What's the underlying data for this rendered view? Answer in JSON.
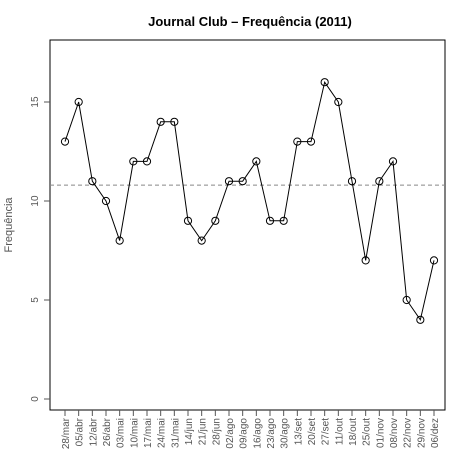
{
  "chart_data": {
    "type": "line",
    "title": "Journal Club – Frequência (2011)",
    "xlabel": "",
    "ylabel": "Frequência",
    "ylim": [
      0,
      17.5
    ],
    "yticks": [
      0,
      5,
      10,
      15
    ],
    "categories": [
      "28/mar",
      "05/abr",
      "12/abr",
      "26/abr",
      "03/mai",
      "10/mai",
      "17/mai",
      "24/mai",
      "31/mai",
      "14/jun",
      "21/jun",
      "28/jun",
      "02/ago",
      "09/ago",
      "16/ago",
      "23/ago",
      "30/ago",
      "13/set",
      "20/set",
      "27/set",
      "11/out",
      "18/out",
      "25/out",
      "01/nov",
      "08/nov",
      "22/nov",
      "29/nov",
      "06/dez"
    ],
    "series": [
      {
        "values": [
          13,
          15,
          11,
          10,
          8,
          12,
          12,
          14,
          14,
          9,
          8,
          9,
          11,
          11,
          12,
          9,
          9,
          13,
          13,
          16,
          15,
          11,
          7,
          11,
          12,
          5,
          4,
          7
        ]
      }
    ],
    "mean_line": 10.8,
    "grid": false,
    "marker": "open-circle",
    "line_color": "#000000",
    "mean_line_color": "#888888"
  }
}
